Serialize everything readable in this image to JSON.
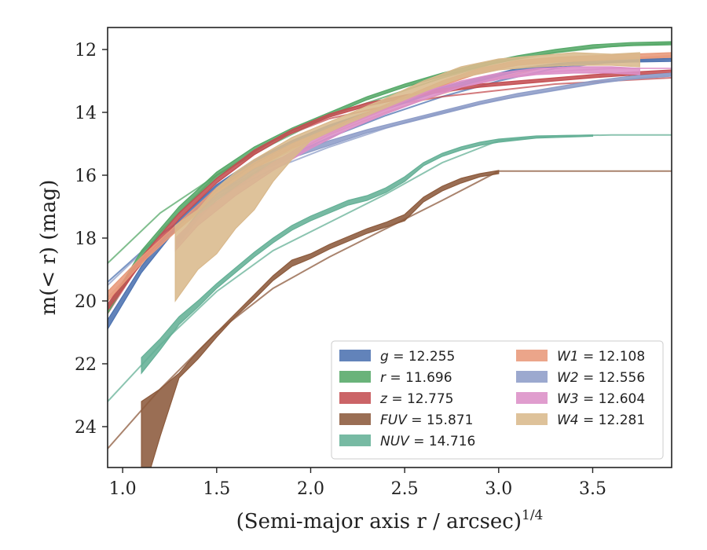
{
  "chart_data": {
    "type": "line",
    "title": "",
    "xlabel": "(Semi-major axis r / arcsec)",
    "xlabel_sup": "1/4",
    "ylabel": "m(< r) (mag)",
    "xlim": [
      0.92,
      3.92
    ],
    "ylim": [
      25.3,
      11.3
    ],
    "y_inverted": true,
    "xticks": [
      1.0,
      1.5,
      2.0,
      2.5,
      3.0,
      3.5
    ],
    "xtick_labels": [
      "1.0",
      "1.5",
      "2.0",
      "2.5",
      "3.0",
      "3.5"
    ],
    "yticks": [
      12,
      14,
      16,
      18,
      20,
      22,
      24
    ],
    "ytick_labels": [
      "12",
      "14",
      "16",
      "18",
      "20",
      "22",
      "24"
    ],
    "grid": false,
    "legend_position": "lower-right",
    "legend_columns": 2,
    "series": [
      {
        "name": "g",
        "label": "g = 12.255",
        "color": "#4c72b0",
        "observed": {
          "x": [
            0.92,
            1.1,
            1.3,
            1.5,
            1.7,
            1.9,
            2.1,
            2.3,
            2.5,
            2.7,
            2.9,
            3.1,
            3.3,
            3.5,
            3.7,
            3.92
          ],
          "y_top": [
            20.6,
            18.9,
            17.4,
            16.3,
            15.5,
            14.9,
            14.4,
            14.0,
            13.6,
            13.2,
            12.9,
            12.6,
            12.45,
            12.35,
            12.3,
            12.28
          ],
          "y_bot": [
            20.9,
            19.1,
            17.6,
            16.5,
            15.65,
            15.0,
            14.5,
            14.1,
            13.7,
            13.3,
            13.0,
            12.7,
            12.55,
            12.45,
            12.4,
            12.38
          ]
        },
        "model": {
          "x": [
            0.92,
            1.2,
            1.5,
            1.8,
            2.1,
            2.4,
            2.7,
            3.0,
            3.3,
            3.6,
            3.92
          ],
          "y": [
            19.4,
            17.9,
            16.6,
            15.6,
            14.8,
            14.1,
            13.5,
            13.0,
            12.6,
            12.4,
            12.3
          ]
        }
      },
      {
        "name": "r",
        "label": "r = 11.696",
        "color": "#55a868",
        "observed": {
          "x": [
            0.92,
            1.1,
            1.3,
            1.5,
            1.7,
            1.9,
            2.1,
            2.3,
            2.5,
            2.7,
            2.9,
            3.1,
            3.3,
            3.5,
            3.7,
            3.92
          ],
          "y_top": [
            20.2,
            18.4,
            17.0,
            15.9,
            15.1,
            14.5,
            14.0,
            13.5,
            13.1,
            12.75,
            12.45,
            12.2,
            12.0,
            11.85,
            11.78,
            11.75
          ],
          "y_bot": [
            20.4,
            18.6,
            17.2,
            16.1,
            15.25,
            14.6,
            14.1,
            13.6,
            13.2,
            12.85,
            12.55,
            12.3,
            12.1,
            11.95,
            11.88,
            11.85
          ]
        },
        "model": {
          "x": [
            0.92,
            1.2,
            1.5,
            1.8,
            2.1,
            2.4,
            2.7,
            3.0,
            3.3,
            3.6,
            3.92
          ],
          "y": [
            18.8,
            17.2,
            16.0,
            15.0,
            14.1,
            13.5,
            12.9,
            12.4,
            12.1,
            11.9,
            11.8
          ]
        }
      },
      {
        "name": "z",
        "label": "z = 12.775",
        "color": "#c44e52",
        "observed": {
          "x": [
            0.92,
            1.1,
            1.3,
            1.5,
            1.7,
            1.9,
            2.1,
            2.3,
            2.5,
            2.7,
            2.9,
            3.1,
            3.3,
            3.5,
            3.7,
            3.92
          ],
          "y_top": [
            20.1,
            18.6,
            17.2,
            16.1,
            15.2,
            14.55,
            14.05,
            13.7,
            13.45,
            13.25,
            13.1,
            13.0,
            12.9,
            12.8,
            12.72,
            12.65
          ],
          "y_bot": [
            20.3,
            18.8,
            17.4,
            16.25,
            15.35,
            14.65,
            14.15,
            13.8,
            13.55,
            13.35,
            13.2,
            13.1,
            13.0,
            12.9,
            12.82,
            12.75
          ]
        },
        "model": {
          "x": [
            0.92,
            1.2,
            1.5,
            1.8,
            2.1,
            2.4,
            2.7,
            3.0,
            3.3,
            3.6,
            3.92
          ],
          "y": [
            20.4,
            17.8,
            16.0,
            14.9,
            14.2,
            13.8,
            13.5,
            13.3,
            13.1,
            13.0,
            12.9
          ]
        }
      },
      {
        "name": "FUV",
        "label": "FUV = 15.871",
        "color": "#8c5a3c",
        "observed": {
          "x": [
            1.1,
            1.15,
            1.2,
            1.3,
            1.4,
            1.5,
            1.6,
            1.7,
            1.8,
            1.9,
            2.0,
            2.1,
            2.2,
            2.3,
            2.4,
            2.5,
            2.6,
            2.7,
            2.8,
            2.9,
            3.0
          ],
          "y_top": [
            23.2,
            23.0,
            22.8,
            22.3,
            21.6,
            21.0,
            20.4,
            19.8,
            19.2,
            18.7,
            18.5,
            18.2,
            17.95,
            17.7,
            17.5,
            17.25,
            16.7,
            16.35,
            16.1,
            15.95,
            15.85
          ],
          "y_bot": [
            25.3,
            25.3,
            24.3,
            22.45,
            21.85,
            21.15,
            20.5,
            19.95,
            19.35,
            18.9,
            18.65,
            18.35,
            18.1,
            17.85,
            17.65,
            17.45,
            16.85,
            16.5,
            16.25,
            16.05,
            15.95
          ]
        },
        "model": {
          "x": [
            0.92,
            1.2,
            1.5,
            1.8,
            2.1,
            2.4,
            2.7,
            3.0,
            3.3,
            3.6,
            3.92
          ],
          "y": [
            24.7,
            22.8,
            21.0,
            19.6,
            18.6,
            17.7,
            16.8,
            15.87,
            15.87,
            15.87,
            15.87
          ]
        }
      },
      {
        "name": "NUV",
        "label": "NUV = 14.716",
        "color": "#64b096",
        "observed": {
          "x": [
            1.1,
            1.2,
            1.3,
            1.4,
            1.5,
            1.6,
            1.7,
            1.8,
            1.9,
            2.0,
            2.1,
            2.2,
            2.3,
            2.4,
            2.5,
            2.6,
            2.7,
            2.8,
            2.9,
            3.0,
            3.2,
            3.5
          ],
          "y_top": [
            21.8,
            21.2,
            20.5,
            20.0,
            19.45,
            18.95,
            18.45,
            18.0,
            17.6,
            17.3,
            17.05,
            16.8,
            16.65,
            16.4,
            16.05,
            15.6,
            15.3,
            15.1,
            14.95,
            14.85,
            14.75,
            14.72
          ],
          "y_bot": [
            22.3,
            21.55,
            20.75,
            20.2,
            19.6,
            19.1,
            18.6,
            18.15,
            17.75,
            17.45,
            17.2,
            16.95,
            16.8,
            16.55,
            16.2,
            15.7,
            15.4,
            15.2,
            15.05,
            14.95,
            14.82,
            14.76
          ]
        },
        "model": {
          "x": [
            0.92,
            1.2,
            1.5,
            1.8,
            2.1,
            2.4,
            2.7,
            3.0,
            3.3,
            3.6,
            3.92
          ],
          "y": [
            23.2,
            21.4,
            19.7,
            18.4,
            17.5,
            16.6,
            15.6,
            14.9,
            14.75,
            14.72,
            14.72
          ]
        }
      },
      {
        "name": "W1",
        "label": "W1 = 12.108",
        "color": "#e8997a",
        "observed": {
          "x": [
            0.92,
            1.1,
            1.3,
            1.5,
            1.7,
            1.9,
            2.1,
            2.3,
            2.5,
            2.7,
            2.9,
            3.1,
            3.3,
            3.5,
            3.7,
            3.92
          ],
          "y_top": [
            19.7,
            18.6,
            17.5,
            16.4,
            15.6,
            15.0,
            14.5,
            14.0,
            13.5,
            13.0,
            12.6,
            12.35,
            12.25,
            12.2,
            12.15,
            12.1
          ],
          "y_bot": [
            20.0,
            18.8,
            17.7,
            16.6,
            15.8,
            15.15,
            14.65,
            14.15,
            13.65,
            13.15,
            12.75,
            12.5,
            12.4,
            12.35,
            12.3,
            12.25
          ]
        },
        "model": {
          "x": [
            0.92,
            1.2,
            1.5,
            1.8,
            2.1,
            2.4,
            2.7,
            3.0,
            3.3,
            3.6,
            3.92
          ],
          "y": [
            20.0,
            18.2,
            16.7,
            15.6,
            14.7,
            14.0,
            13.4,
            12.9,
            12.5,
            12.3,
            12.2
          ]
        }
      },
      {
        "name": "W2",
        "label": "W2 = 12.556",
        "color": "#8e9dc8",
        "observed": {
          "x": [
            1.28,
            1.4,
            1.5,
            1.7,
            1.9,
            2.1,
            2.3,
            2.5,
            2.7,
            2.9,
            3.1,
            3.3,
            3.5,
            3.7,
            3.92
          ],
          "y_top": [
            18.1,
            17.2,
            16.6,
            15.8,
            15.3,
            14.9,
            14.55,
            14.25,
            13.95,
            13.65,
            13.4,
            13.2,
            13.0,
            12.85,
            12.75
          ],
          "y_bot": [
            18.3,
            17.4,
            16.8,
            15.95,
            15.45,
            15.05,
            14.65,
            14.35,
            14.05,
            13.75,
            13.5,
            13.3,
            13.1,
            12.95,
            12.85
          ]
        },
        "model": {
          "x": [
            0.92,
            1.2,
            1.5,
            1.8,
            2.1,
            2.4,
            2.7,
            3.0,
            3.3,
            3.6,
            3.92
          ],
          "y": [
            19.5,
            17.9,
            16.7,
            15.8,
            15.1,
            14.5,
            14.0,
            13.6,
            13.3,
            13.0,
            12.8
          ]
        }
      },
      {
        "name": "W3",
        "label": "W3 = 12.604",
        "color": "#dc8fc7",
        "observed": {
          "x": [
            1.28,
            1.4,
            1.6,
            1.8,
            2.0,
            2.2,
            2.4,
            2.6,
            2.8,
            3.0,
            3.2,
            3.4,
            3.6,
            3.75
          ],
          "y_top": [
            18.0,
            17.3,
            16.4,
            15.6,
            14.9,
            14.3,
            13.8,
            13.35,
            13.0,
            12.75,
            12.6,
            12.55,
            12.55,
            12.6
          ],
          "y_bot": [
            18.4,
            17.6,
            16.65,
            15.85,
            15.15,
            14.55,
            14.05,
            13.6,
            13.2,
            12.95,
            12.8,
            12.75,
            12.75,
            12.8
          ]
        },
        "model": {
          "x": [
            0.92,
            1.2,
            1.5,
            1.8,
            2.1,
            2.4,
            2.7,
            3.0,
            3.3,
            3.6,
            3.92
          ],
          "y": [
            19.9,
            18.1,
            16.6,
            15.4,
            14.5,
            13.8,
            13.3,
            12.9,
            12.7,
            12.6,
            12.6
          ]
        }
      },
      {
        "name": "W4",
        "label": "W4 = 12.281",
        "color": "#d9b98c",
        "observed": {
          "x": [
            1.28,
            1.4,
            1.5,
            1.6,
            1.7,
            1.8,
            1.9,
            2.0,
            2.2,
            2.4,
            2.6,
            2.8,
            3.0,
            3.2,
            3.4,
            3.6,
            3.75
          ],
          "y_top": [
            17.6,
            17.1,
            16.4,
            15.9,
            15.5,
            15.15,
            14.8,
            14.55,
            14.05,
            13.55,
            13.0,
            12.55,
            12.3,
            12.2,
            12.1,
            12.15,
            12.1
          ],
          "y_bot": [
            20.0,
            19.0,
            18.5,
            17.7,
            17.1,
            16.2,
            15.5,
            14.9,
            14.35,
            13.85,
            13.35,
            12.9,
            12.65,
            12.55,
            12.5,
            12.5,
            12.55
          ]
        },
        "model": {
          "x": [
            0.92,
            1.2,
            1.5,
            1.8,
            2.1,
            2.4,
            2.7,
            3.0,
            3.3,
            3.6,
            3.92
          ],
          "y": [
            19.9,
            18.2,
            16.7,
            15.5,
            14.6,
            13.9,
            13.3,
            12.8,
            12.5,
            12.3,
            12.3
          ]
        }
      }
    ]
  }
}
